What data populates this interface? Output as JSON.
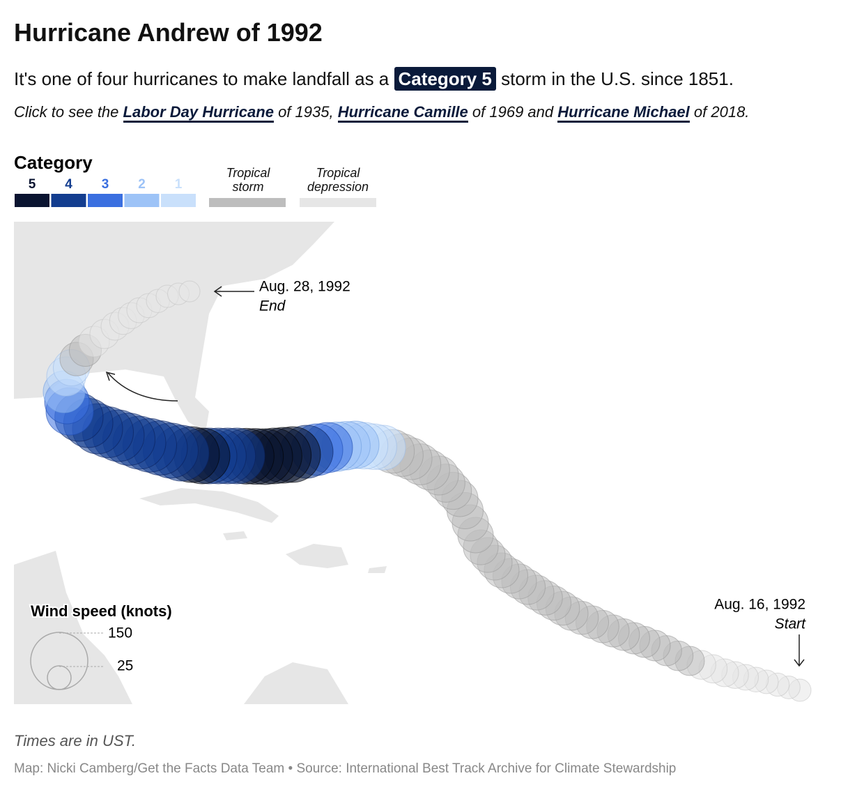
{
  "header": {
    "title": "Hurricane Andrew of 1992",
    "subtitle": {
      "before": "It's one of four hurricanes to make landfall as a",
      "highlight": "Category 5",
      "after": "storm in the U.S. since 1851."
    },
    "links": {
      "before": "Click to see the",
      "items": [
        {
          "label": "Labor Day Hurricane",
          "after": "of 1935,"
        },
        {
          "label": "Hurricane Camille",
          "after": "of 1969 and"
        },
        {
          "label": "Hurricane Michael",
          "after": "of 2018."
        }
      ]
    }
  },
  "legend": {
    "title": "Category",
    "categories": [
      5,
      4,
      3,
      2,
      1
    ],
    "extra": [
      "Tropical storm",
      "Tropical depression"
    ]
  },
  "annotations": {
    "end": {
      "date": "Aug. 28, 1992",
      "label": "End"
    },
    "start": {
      "date": "Aug. 16, 1992",
      "label": "Start"
    }
  },
  "size_legend": {
    "title": "Wind speed (knots)",
    "values": [
      150,
      25
    ]
  },
  "footer": {
    "note": "Times are in UST.",
    "credit": "Map: Nicki Camberg/Get the Facts Data Team • Source: International Best Track Archive for Climate Stewardship"
  }
}
